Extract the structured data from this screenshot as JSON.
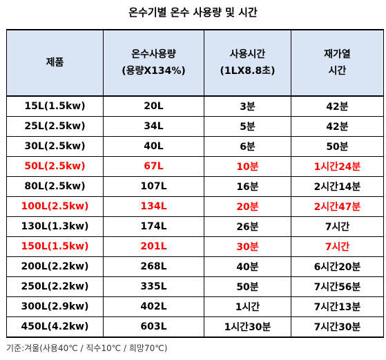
{
  "title": "온수기별 온수 사용량 및 시간",
  "headers": {
    "product": "제품",
    "volume_line1": "온수사용량",
    "volume_line2": "(용량X134%)",
    "time_line1": "사용시간",
    "time_line2": "(1LX8.8초)",
    "reheat_line1": "재가열",
    "reheat_line2": "시간"
  },
  "highlight_color": "#ff0000",
  "header_bg": "#d9e5f4",
  "rows": [
    {
      "product": "15L(1.5kw)",
      "volume": "20L",
      "time": "3분",
      "reheat": "42분",
      "highlight": false
    },
    {
      "product": "25L(2.5kw)",
      "volume": "34L",
      "time": "5분",
      "reheat": "42분",
      "highlight": false
    },
    {
      "product": "30L(2.5kw)",
      "volume": "40L",
      "time": "6분",
      "reheat": "50분",
      "highlight": false
    },
    {
      "product": "50L(2.5kw)",
      "volume": "67L",
      "time": "10분",
      "reheat": "1시간24분",
      "highlight": true
    },
    {
      "product": "80L(2.5kw)",
      "volume": "107L",
      "time": "16분",
      "reheat": "2시간14분",
      "highlight": false
    },
    {
      "product": "100L(2.5kw)",
      "volume": "134L",
      "time": "20분",
      "reheat": "2시간47분",
      "highlight": true
    },
    {
      "product": "130L(1.3kw)",
      "volume": "174L",
      "time": "26분",
      "reheat": "7시간",
      "highlight": false
    },
    {
      "product": "150L(1.5kw)",
      "volume": "201L",
      "time": "30분",
      "reheat": "7시간",
      "highlight": true
    },
    {
      "product": "200L(2.2kw)",
      "volume": "268L",
      "time": "40분",
      "reheat": "6시간20분",
      "highlight": false
    },
    {
      "product": "250L(2.2kw)",
      "volume": "335L",
      "time": "50분",
      "reheat": "7시간56분",
      "highlight": false
    },
    {
      "product": "300L(2.9kw)",
      "volume": "402L",
      "time": "1시간",
      "reheat": "7시간13분",
      "highlight": false
    },
    {
      "product": "450L(4.2kw)",
      "volume": "603L",
      "time": "1시간30분",
      "reheat": "7시간30분",
      "highlight": false
    }
  ],
  "footnote": "기준:겨울(사용40℃ / 직수10℃ / 희망70℃)"
}
